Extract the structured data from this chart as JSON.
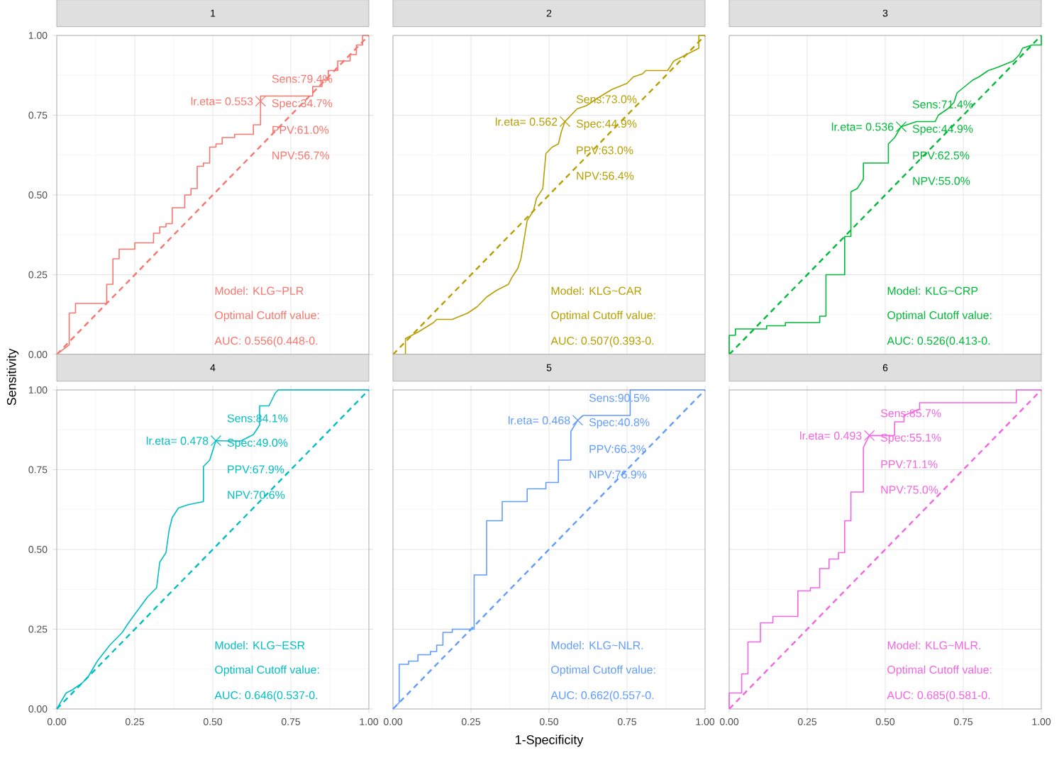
{
  "chart_data": [
    {
      "type": "line",
      "title": "1",
      "xlim": [
        0,
        1
      ],
      "ylim": [
        0,
        1
      ],
      "xticks": [
        0,
        0.25,
        0.5,
        0.75,
        1
      ],
      "yticks": [
        {
          "value": 0,
          "label": "0.00"
        },
        {
          "value": 0.25,
          "label": "0.25"
        },
        {
          "value": 0.5,
          "label": "0.50"
        },
        {
          "value": 0.75,
          "label": "0.75"
        },
        {
          "value": 1,
          "label": "1.00"
        }
      ],
      "grid": true,
      "tick_labels": "y",
      "series": [
        {
          "type": "line",
          "color": "#F8766D",
          "x": [
            0,
            0.04,
            0.04,
            0.06,
            0.06,
            0.16,
            0.16,
            0.18,
            0.18,
            0.2,
            0.2,
            0.25,
            0.25,
            0.31,
            0.31,
            0.33,
            0.33,
            0.35,
            0.35,
            0.37,
            0.37,
            0.41,
            0.41,
            0.43,
            0.43,
            0.45,
            0.45,
            0.47,
            0.47,
            0.49,
            0.49,
            0.51,
            0.51,
            0.53,
            0.53,
            0.57,
            0.57,
            0.63,
            0.63,
            0.653,
            0.653,
            0.82,
            0.82,
            0.85,
            0.85,
            0.87,
            0.87,
            0.9,
            0.9,
            0.94,
            0.94,
            0.96,
            0.96,
            0.98,
            0.98,
            1
          ],
          "values": [
            0,
            0.03,
            0.13,
            0.13,
            0.16,
            0.16,
            0.22,
            0.22,
            0.3,
            0.3,
            0.33,
            0.33,
            0.35,
            0.35,
            0.38,
            0.38,
            0.4,
            0.4,
            0.41,
            0.41,
            0.46,
            0.46,
            0.5,
            0.5,
            0.52,
            0.52,
            0.59,
            0.59,
            0.6,
            0.6,
            0.65,
            0.65,
            0.66,
            0.66,
            0.68,
            0.68,
            0.69,
            0.69,
            0.72,
            0.72,
            0.81,
            0.81,
            0.84,
            0.84,
            0.86,
            0.86,
            0.89,
            0.89,
            0.92,
            0.92,
            0.94,
            0.94,
            0.97,
            0.97,
            1,
            1
          ]
        },
        {
          "type": "line",
          "line_style": "dashed",
          "color": "#F8766D",
          "x": [
            0,
            1
          ],
          "values": [
            0,
            1
          ]
        },
        {
          "type": "scatter",
          "marker": "cross",
          "color": "#F8766D",
          "x": [
            0.653
          ],
          "values": [
            0.794
          ]
        }
      ],
      "annotations": [
        {
          "text": "lr.eta= 0.553",
          "x": 0.653,
          "y": 0.794
        },
        "Sens:79.4%",
        "Spec:34.7%",
        "PPV:61.0%",
        "NPV:56.7%",
        "Model: KLG~PLR",
        "Optimal Cutoff value:",
        "AUC:  0.556(0.448-0."
      ]
    },
    {
      "type": "line",
      "title": "2",
      "xlim": [
        0,
        1
      ],
      "ylim": [
        0,
        1
      ],
      "xticks": [
        0,
        0.25,
        0.5,
        0.75,
        1
      ],
      "yticks": [
        0,
        0.25,
        0.5,
        0.75,
        1
      ],
      "grid": true,
      "tick_labels": false,
      "series": [
        {
          "type": "line",
          "color": "#B79F00",
          "x": [
            0,
            0.04,
            0.04,
            0.08,
            0.13,
            0.14,
            0.19,
            0.24,
            0.27,
            0.3,
            0.33,
            0.37,
            0.38,
            0.4,
            0.41,
            0.43,
            0.45,
            0.46,
            0.48,
            0.49,
            0.51,
            0.53,
            0.54,
            0.551,
            0.59,
            0.62,
            0.65,
            0.7,
            0.75,
            0.77,
            0.8,
            0.81,
            0.88,
            0.9,
            0.94,
            0.96,
            0.98,
            0.98,
            1
          ],
          "values": [
            0,
            0,
            0.05,
            0.07,
            0.1,
            0.11,
            0.11,
            0.13,
            0.15,
            0.18,
            0.2,
            0.22,
            0.24,
            0.27,
            0.3,
            0.42,
            0.45,
            0.49,
            0.52,
            0.63,
            0.65,
            0.66,
            0.7,
            0.73,
            0.77,
            0.78,
            0.8,
            0.83,
            0.85,
            0.87,
            0.88,
            0.89,
            0.89,
            0.92,
            0.94,
            0.95,
            0.96,
            1,
            1
          ]
        },
        {
          "type": "line",
          "line_style": "dashed",
          "color": "#B79F00",
          "x": [
            0,
            1
          ],
          "values": [
            0,
            1
          ]
        },
        {
          "type": "scatter",
          "marker": "cross",
          "color": "#B79F00",
          "x": [
            0.551
          ],
          "values": [
            0.73
          ]
        }
      ],
      "annotations": [
        {
          "text": "lr.eta= 0.562",
          "x": 0.551,
          "y": 0.73
        },
        "Sens:73.0%",
        "Spec:44.9%",
        "PPV:63.0%",
        "NPV:56.4%",
        "Model: KLG~CAR",
        "Optimal Cutoff value:",
        "AUC:  0.507(0.393-0."
      ]
    },
    {
      "type": "line",
      "title": "3",
      "xlim": [
        0,
        1
      ],
      "ylim": [
        0,
        1
      ],
      "xticks": [
        0,
        0.25,
        0.5,
        0.75,
        1
      ],
      "yticks": [
        0,
        0.25,
        0.5,
        0.75,
        1
      ],
      "grid": true,
      "tick_labels": false,
      "series": [
        {
          "type": "line",
          "color": "#00BA38",
          "x": [
            0,
            0,
            0.02,
            0.02,
            0.12,
            0.12,
            0.18,
            0.18,
            0.29,
            0.29,
            0.31,
            0.31,
            0.37,
            0.37,
            0.39,
            0.39,
            0.41,
            0.43,
            0.43,
            0.51,
            0.51,
            0.53,
            0.551,
            0.6,
            0.66,
            0.67,
            0.7,
            0.72,
            0.73,
            0.78,
            0.8,
            0.83,
            0.86,
            0.91,
            0.93,
            0.94,
            0.97,
            1,
            1
          ],
          "values": [
            0,
            0.06,
            0.06,
            0.08,
            0.08,
            0.09,
            0.09,
            0.1,
            0.1,
            0.12,
            0.12,
            0.25,
            0.25,
            0.37,
            0.37,
            0.51,
            0.52,
            0.55,
            0.6,
            0.6,
            0.66,
            0.68,
            0.714,
            0.73,
            0.73,
            0.75,
            0.77,
            0.79,
            0.82,
            0.86,
            0.87,
            0.89,
            0.9,
            0.92,
            0.94,
            0.96,
            0.97,
            0.97,
            1
          ]
        },
        {
          "type": "line",
          "line_style": "dashed",
          "color": "#00BA38",
          "x": [
            0,
            1
          ],
          "values": [
            0,
            1
          ]
        },
        {
          "type": "scatter",
          "marker": "cross",
          "color": "#00BA38",
          "x": [
            0.551
          ],
          "values": [
            0.714
          ]
        }
      ],
      "annotations": [
        {
          "text": "lr.eta= 0.536",
          "x": 0.551,
          "y": 0.714
        },
        "Sens:71.4%",
        "Spec:44.9%",
        "PPV:62.5%",
        "NPV:55.0%",
        "Model: KLG~CRP",
        "Optimal Cutoff value:",
        "AUC:  0.526(0.413-0."
      ]
    },
    {
      "type": "line",
      "title": "4",
      "ylabel": "Sensitivity",
      "xlim": [
        0,
        1
      ],
      "ylim": [
        0,
        1
      ],
      "xticks": [
        {
          "value": 0,
          "label": "0.00"
        },
        {
          "value": 0.25,
          "label": "0.25"
        },
        {
          "value": 0.5,
          "label": "0.50"
        },
        {
          "value": 0.75,
          "label": "0.75"
        },
        {
          "value": 1,
          "label": "1.00"
        }
      ],
      "yticks": [
        {
          "value": 0,
          "label": "0.00"
        },
        {
          "value": 0.25,
          "label": "0.25"
        },
        {
          "value": 0.5,
          "label": "0.50"
        },
        {
          "value": 0.75,
          "label": "0.75"
        },
        {
          "value": 1,
          "label": "1.00"
        }
      ],
      "grid": true,
      "series": [
        {
          "type": "line",
          "color": "#00BFC4",
          "x": [
            0,
            0.03,
            0.05,
            0.08,
            0.1,
            0.13,
            0.17,
            0.21,
            0.23,
            0.26,
            0.29,
            0.32,
            0.33,
            0.35,
            0.36,
            0.37,
            0.39,
            0.42,
            0.47,
            0.47,
            0.49,
            0.51,
            0.55,
            0.59,
            0.63,
            0.65,
            0.65,
            0.68,
            0.7,
            0.71,
            1
          ],
          "values": [
            0,
            0.05,
            0.06,
            0.08,
            0.1,
            0.15,
            0.2,
            0.24,
            0.27,
            0.31,
            0.35,
            0.38,
            0.46,
            0.49,
            0.56,
            0.6,
            0.63,
            0.64,
            0.65,
            0.76,
            0.78,
            0.841,
            0.84,
            0.84,
            0.86,
            0.89,
            0.95,
            0.95,
            0.99,
            1,
            1
          ]
        },
        {
          "type": "line",
          "line_style": "dashed",
          "color": "#00BFC4",
          "x": [
            0,
            1
          ],
          "values": [
            0,
            1
          ]
        },
        {
          "type": "scatter",
          "marker": "cross",
          "color": "#00BFC4",
          "x": [
            0.51
          ],
          "values": [
            0.841
          ]
        }
      ],
      "annotations": [
        {
          "text": "lr.eta= 0.478",
          "x": 0.51,
          "y": 0.841
        },
        "Sens:84.1%",
        "Spec:49.0%",
        "PPV:67.9%",
        "NPV:70.6%",
        "Model: KLG~ESR",
        "Optimal Cutoff value:",
        "AUC:  0.646(0.537-0."
      ]
    },
    {
      "type": "line",
      "title": "5",
      "xlabel": "1-Specificity",
      "xlim": [
        0,
        1
      ],
      "ylim": [
        0,
        1
      ],
      "xticks": [
        {
          "value": 0,
          "label": "0.00"
        },
        {
          "value": 0.25,
          "label": "0.25"
        },
        {
          "value": 0.5,
          "label": "0.50"
        },
        {
          "value": 0.75,
          "label": "0.75"
        },
        {
          "value": 1,
          "label": "1.00"
        }
      ],
      "yticks": [
        0,
        0.25,
        0.5,
        0.75,
        1
      ],
      "grid": true,
      "tick_labels": "x",
      "series": [
        {
          "type": "line",
          "color": "#619CFF",
          "x": [
            0,
            0.02,
            0.02,
            0.05,
            0.05,
            0.08,
            0.08,
            0.12,
            0.12,
            0.14,
            0.14,
            0.16,
            0.16,
            0.19,
            0.19,
            0.26,
            0.26,
            0.3,
            0.3,
            0.35,
            0.35,
            0.43,
            0.43,
            0.49,
            0.49,
            0.53,
            0.53,
            0.57,
            0.57,
            0.592,
            0.61,
            0.76,
            0.76,
            1
          ],
          "values": [
            0,
            0.02,
            0.14,
            0.14,
            0.15,
            0.15,
            0.17,
            0.17,
            0.18,
            0.18,
            0.2,
            0.2,
            0.24,
            0.24,
            0.25,
            0.25,
            0.42,
            0.42,
            0.59,
            0.59,
            0.65,
            0.65,
            0.69,
            0.69,
            0.71,
            0.71,
            0.78,
            0.78,
            0.87,
            0.905,
            0.92,
            0.92,
            1,
            1
          ]
        },
        {
          "type": "line",
          "line_style": "dashed",
          "color": "#619CFF",
          "x": [
            0,
            1
          ],
          "values": [
            0,
            1
          ]
        },
        {
          "type": "scatter",
          "marker": "cross",
          "color": "#619CFF",
          "x": [
            0.592
          ],
          "values": [
            0.905
          ]
        }
      ],
      "annotations": [
        {
          "text": "lr.eta= 0.468",
          "x": 0.592,
          "y": 0.905
        },
        "Sens:90.5%",
        "Spec:40.8%",
        "PPV:66.3%",
        "NPV:76.9%",
        "Model: KLG~NLR.",
        "Optimal Cutoff value:",
        "AUC:  0.662(0.557-0."
      ]
    },
    {
      "type": "line",
      "title": "6",
      "xlim": [
        0,
        1
      ],
      "ylim": [
        0,
        1
      ],
      "xticks": [
        {
          "value": 0,
          "label": "0.00"
        },
        {
          "value": 0.25,
          "label": "0.25"
        },
        {
          "value": 0.5,
          "label": "0.50"
        },
        {
          "value": 0.75,
          "label": "0.75"
        },
        {
          "value": 1,
          "label": "1.00"
        }
      ],
      "yticks": [
        0,
        0.25,
        0.5,
        0.75,
        1
      ],
      "grid": true,
      "tick_labels": "x",
      "series": [
        {
          "type": "line",
          "color": "#F564E3",
          "x": [
            0,
            0,
            0.04,
            0.04,
            0.06,
            0.06,
            0.1,
            0.1,
            0.14,
            0.14,
            0.22,
            0.22,
            0.26,
            0.26,
            0.29,
            0.29,
            0.32,
            0.32,
            0.35,
            0.35,
            0.37,
            0.37,
            0.39,
            0.39,
            0.43,
            0.43,
            0.449,
            0.53,
            0.53,
            0.56,
            0.56,
            0.61,
            0.61,
            0.92,
            0.92,
            1
          ],
          "values": [
            0,
            0.05,
            0.05,
            0.11,
            0.11,
            0.21,
            0.21,
            0.27,
            0.27,
            0.29,
            0.29,
            0.37,
            0.37,
            0.38,
            0.38,
            0.44,
            0.44,
            0.47,
            0.47,
            0.49,
            0.49,
            0.59,
            0.59,
            0.68,
            0.68,
            0.82,
            0.857,
            0.857,
            0.9,
            0.9,
            0.92,
            0.94,
            0.96,
            0.96,
            1,
            1
          ]
        },
        {
          "type": "line",
          "line_style": "dashed",
          "color": "#F564E3",
          "x": [
            0,
            1
          ],
          "values": [
            0,
            1
          ]
        },
        {
          "type": "scatter",
          "marker": "cross",
          "color": "#F564E3",
          "x": [
            0.449
          ],
          "values": [
            0.857
          ]
        }
      ],
      "annotations": [
        {
          "text": "lr.eta= 0.493",
          "x": 0.449,
          "y": 0.857
        },
        "Sens:85.7%",
        "Spec:55.1%",
        "PPV:71.1%",
        "NPV:75.0%",
        "Model: KLG~MLR.",
        "Optimal Cutoff value:",
        "AUC:  0.685(0.581-0."
      ]
    }
  ]
}
